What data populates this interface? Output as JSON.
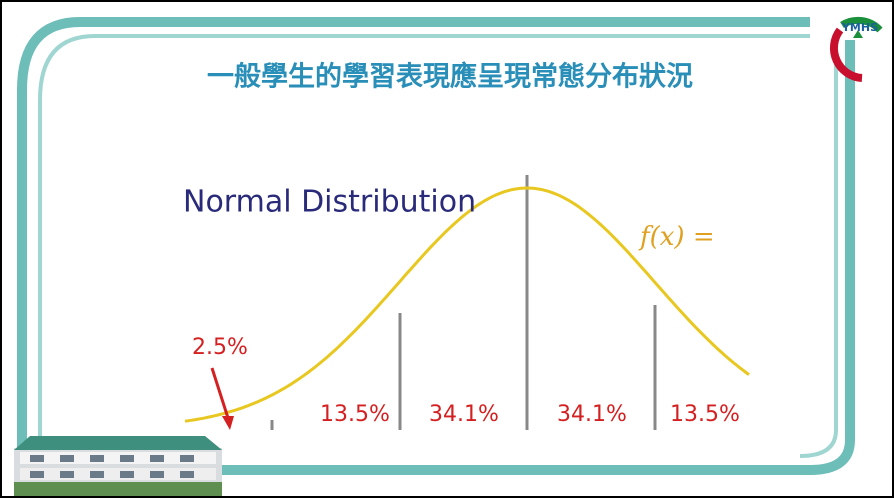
{
  "slide": {
    "title": "一般學生的學習表現應呈現常態分布狀況",
    "logo": "YMHS",
    "figure": {
      "heading": "Normal Distribution",
      "formula": "f(x) =",
      "labels": [
        "2.5%",
        "13.5%",
        "34.1%",
        "34.1%",
        "13.5%"
      ]
    }
  }
}
